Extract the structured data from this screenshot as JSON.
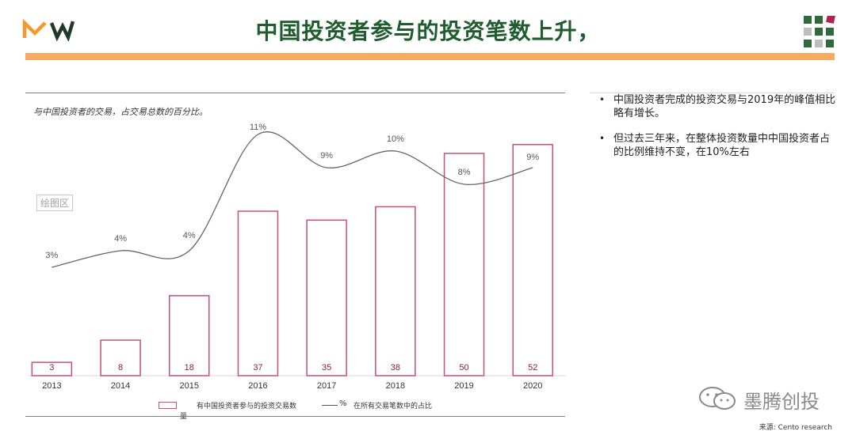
{
  "header": {
    "title": "中国投资者参与的投资笔数上升，",
    "logo_text": "MW",
    "accent_color": "#f6ab63",
    "title_color": "#1f5c2e"
  },
  "chart_panel": {
    "subtitle": "与中国投资者的交易，占交易总数的百分比。",
    "plot_area_label": "绘图区"
  },
  "legend": {
    "bar_label": "有中国投资者参与的投资交易数",
    "bar_label_tail": "量",
    "line_symbol": "%",
    "line_label": "在所有交易笔数中的占比"
  },
  "bullets": [
    "中国投资者完成的投资交易与2019年的峰值相比略有增长。",
    "但过去三年来，在整体投资数量中中国投资者占的比例维持不变，在10%左右"
  ],
  "watermark": {
    "text": "墨腾创投",
    "icon": "wechat-icon"
  },
  "footer": {
    "source": "来源: Cento research"
  },
  "chart_data": {
    "type": "bar",
    "categories": [
      "2013",
      "2014",
      "2015",
      "2016",
      "2017",
      "2018",
      "2019",
      "2020"
    ],
    "series": [
      {
        "name": "有中国投资者参与的投资交易数量",
        "type": "bar",
        "values": [
          3,
          8,
          18,
          37,
          35,
          38,
          50,
          52
        ],
        "value_labels": [
          "3",
          "8",
          "18",
          "37",
          "35",
          "38",
          "50",
          "52"
        ],
        "color": "#c85078"
      },
      {
        "name": "在所有交易笔数中的占比",
        "type": "line",
        "values": [
          3,
          4,
          4,
          11,
          9,
          10,
          8,
          9
        ],
        "value_labels": [
          "3%",
          "4%",
          "4%",
          "11%",
          "9%",
          "10%",
          "8%",
          "9%"
        ],
        "color": "#666666"
      }
    ],
    "bar_ylim": [
      0,
      55
    ],
    "line_ylim": [
      0,
      12
    ],
    "title": "",
    "xlabel": "",
    "ylabel": "",
    "grid": false,
    "legend_position": "bottom"
  }
}
